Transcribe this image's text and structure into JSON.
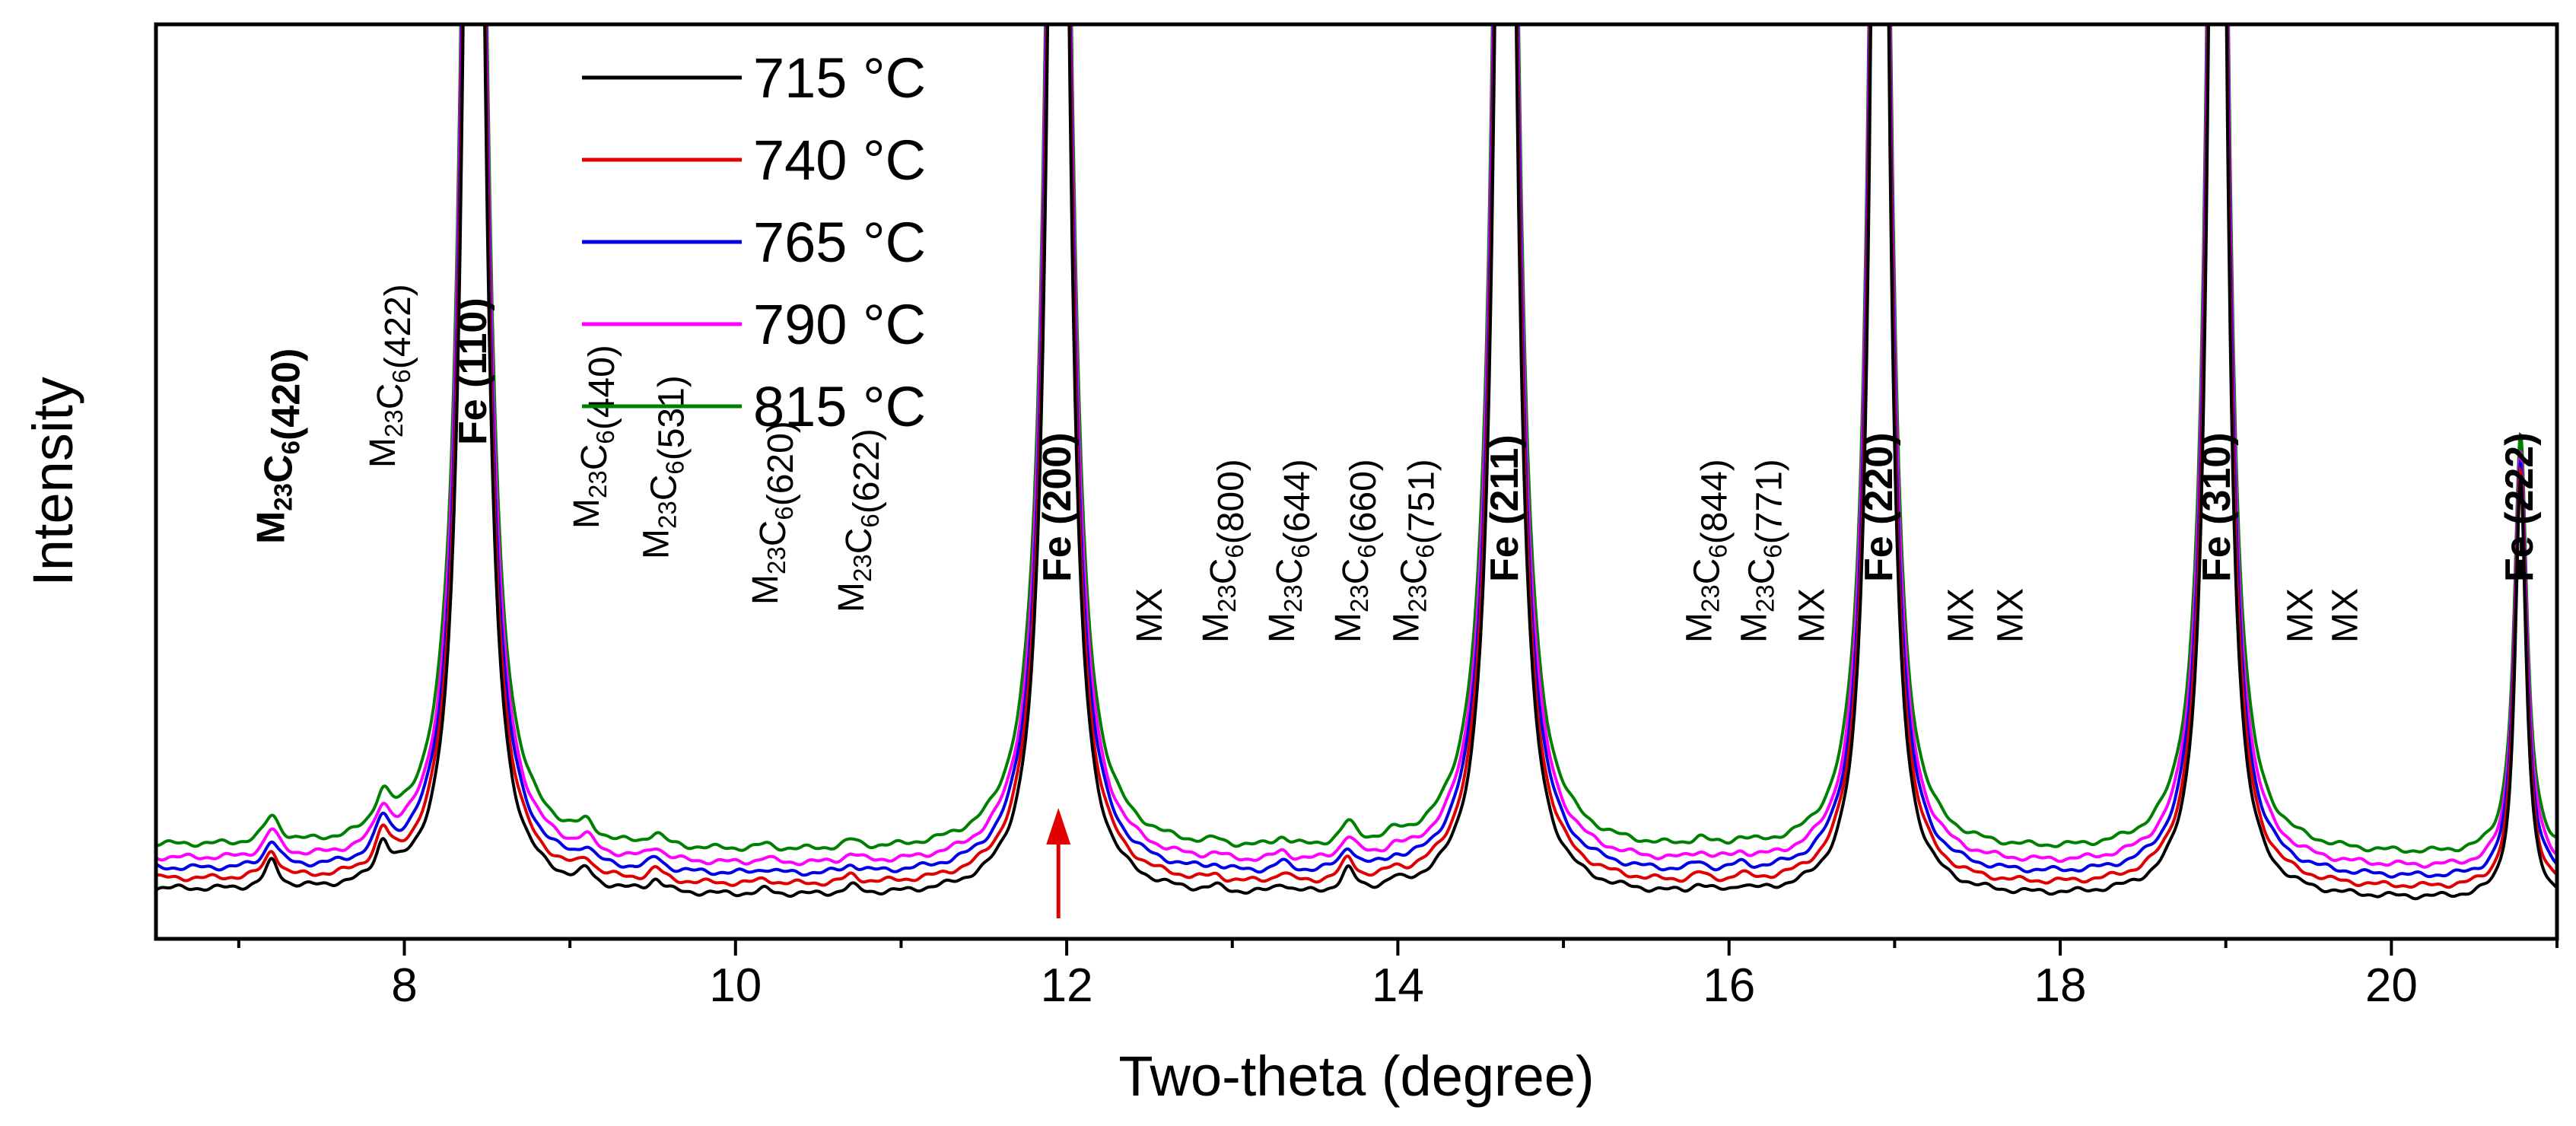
{
  "chart_data": {
    "type": "line",
    "title": "",
    "xlabel": "Two-theta (degree)",
    "ylabel": "Intensity",
    "xlim": [
      6.5,
      21.0
    ],
    "ylim": [
      0,
      1
    ],
    "x_ticks": [
      8,
      10,
      12,
      14,
      16,
      18,
      20
    ],
    "x_tick_labels": [
      "8",
      "10",
      "12",
      "14",
      "16",
      "18",
      "20"
    ],
    "grid": false,
    "legend_position": "top-left",
    "series": [
      {
        "name": "715 °C",
        "color": "#000000",
        "offset": 0.0
      },
      {
        "name": "740 °C",
        "color": "#e00000",
        "offset": 0.06
      },
      {
        "name": "765 °C",
        "color": "#0000e6",
        "offset": 0.12
      },
      {
        "name": "790 °C",
        "color": "#ff00ff",
        "offset": 0.18
      },
      {
        "name": "815 °C",
        "color": "#008000",
        "offset": 0.26
      }
    ],
    "peaks": [
      {
        "x": 7.2,
        "h": 0.035,
        "w": 0.05
      },
      {
        "x": 7.87,
        "h": 0.045,
        "w": 0.05
      },
      {
        "x": 8.42,
        "h": 2.5,
        "w": 0.06
      },
      {
        "x": 9.1,
        "h": 0.018,
        "w": 0.05
      },
      {
        "x": 9.52,
        "h": 0.016,
        "w": 0.05
      },
      {
        "x": 10.18,
        "h": 0.006,
        "w": 0.05
      },
      {
        "x": 10.7,
        "h": 0.01,
        "w": 0.05
      },
      {
        "x": 11.95,
        "h": 2.5,
        "w": 0.06
      },
      {
        "x": 12.9,
        "h": 0.006,
        "w": 0.05
      },
      {
        "x": 13.3,
        "h": 0.012,
        "w": 0.05
      },
      {
        "x": 13.7,
        "h": 0.028,
        "w": 0.05
      },
      {
        "x": 13.98,
        "h": 0.008,
        "w": 0.05
      },
      {
        "x": 14.65,
        "h": 2.5,
        "w": 0.06
      },
      {
        "x": 15.82,
        "h": 0.01,
        "w": 0.05
      },
      {
        "x": 16.07,
        "h": 0.008,
        "w": 0.05
      },
      {
        "x": 16.91,
        "h": 2.5,
        "w": 0.05
      },
      {
        "x": 18.95,
        "h": 2.5,
        "w": 0.05
      },
      {
        "x": 20.78,
        "h": 0.55,
        "w": 0.04
      }
    ],
    "annotations": [
      {
        "x": 7.2,
        "y": 0.47,
        "base": "M",
        "sub1": "23",
        "mid": "C",
        "sub2": "6",
        "tail": "(420)",
        "color": "#e00000",
        "bold": true
      },
      {
        "x": 7.87,
        "y": 0.57,
        "base": "M",
        "sub1": "23",
        "mid": "C",
        "sub2": "6",
        "tail": "(422)",
        "color": "#000000",
        "bold": false
      },
      {
        "x": 8.42,
        "y": 0.6,
        "text": "Fe (110)",
        "color": "#000000",
        "bold": true
      },
      {
        "x": 9.1,
        "y": 0.49,
        "base": "M",
        "sub1": "23",
        "mid": "C",
        "sub2": "6",
        "tail": "(440)",
        "color": "#000000",
        "bold": false
      },
      {
        "x": 9.52,
        "y": 0.45,
        "base": "M",
        "sub1": "23",
        "mid": "C",
        "sub2": "6",
        "tail": "(531)",
        "color": "#000000",
        "bold": false
      },
      {
        "x": 10.18,
        "y": 0.39,
        "base": "M",
        "sub1": "23",
        "mid": "C",
        "sub2": "6",
        "tail": "(620)",
        "color": "#000000",
        "bold": false
      },
      {
        "x": 10.7,
        "y": 0.38,
        "base": "M",
        "sub1": "23",
        "mid": "C",
        "sub2": "6",
        "tail": "(622)",
        "color": "#000000",
        "bold": false
      },
      {
        "x": 11.95,
        "y": 0.42,
        "text": "Fe (200)",
        "color": "#e00000",
        "bold": true
      },
      {
        "x": 12.5,
        "y": 0.34,
        "text": "MX",
        "color": "#000000",
        "bold": false
      },
      {
        "x": 12.9,
        "y": 0.34,
        "base": "M",
        "sub1": "23",
        "mid": "C",
        "sub2": "6",
        "tail": "(800)",
        "color": "#000000",
        "bold": false
      },
      {
        "x": 13.3,
        "y": 0.34,
        "base": "M",
        "sub1": "23",
        "mid": "C",
        "sub2": "6",
        "tail": "(644)",
        "color": "#000000",
        "bold": false
      },
      {
        "x": 13.7,
        "y": 0.34,
        "base": "M",
        "sub1": "23",
        "mid": "C",
        "sub2": "6",
        "tail": "(660)",
        "color": "#000000",
        "bold": false
      },
      {
        "x": 14.05,
        "y": 0.34,
        "base": "M",
        "sub1": "23",
        "mid": "C",
        "sub2": "6",
        "tail": "(751)",
        "color": "#000000",
        "bold": false
      },
      {
        "x": 14.65,
        "y": 0.42,
        "text": "Fe (211)",
        "color": "#000000",
        "bold": true
      },
      {
        "x": 15.82,
        "y": 0.34,
        "base": "M",
        "sub1": "23",
        "mid": "C",
        "sub2": "6",
        "tail": "(844)",
        "color": "#000000",
        "bold": false
      },
      {
        "x": 16.15,
        "y": 0.34,
        "base": "M",
        "sub1": "23",
        "mid": "C",
        "sub2": "6",
        "tail": "(771)",
        "color": "#000000",
        "bold": false
      },
      {
        "x": 16.5,
        "y": 0.34,
        "text": "MX",
        "color": "#000000",
        "bold": false
      },
      {
        "x": 16.91,
        "y": 0.42,
        "text": "Fe (220)",
        "color": "#000000",
        "bold": true
      },
      {
        "x": 17.4,
        "y": 0.34,
        "text": "MX",
        "color": "#000000",
        "bold": false
      },
      {
        "x": 17.7,
        "y": 0.34,
        "text": "MX",
        "color": "#000000",
        "bold": false
      },
      {
        "x": 18.95,
        "y": 0.42,
        "text": "Fe (310)",
        "color": "#000000",
        "bold": true
      },
      {
        "x": 19.45,
        "y": 0.34,
        "text": "MX",
        "color": "#000000",
        "bold": false
      },
      {
        "x": 19.72,
        "y": 0.34,
        "text": "MX",
        "color": "#000000",
        "bold": false
      },
      {
        "x": 20.78,
        "y": 0.42,
        "text": "Fe (222)",
        "color": "#000000",
        "bold": true
      }
    ],
    "arrow": {
      "x": 11.95,
      "y_from": 0.02,
      "y_to": 0.14,
      "color": "#e00000"
    }
  }
}
